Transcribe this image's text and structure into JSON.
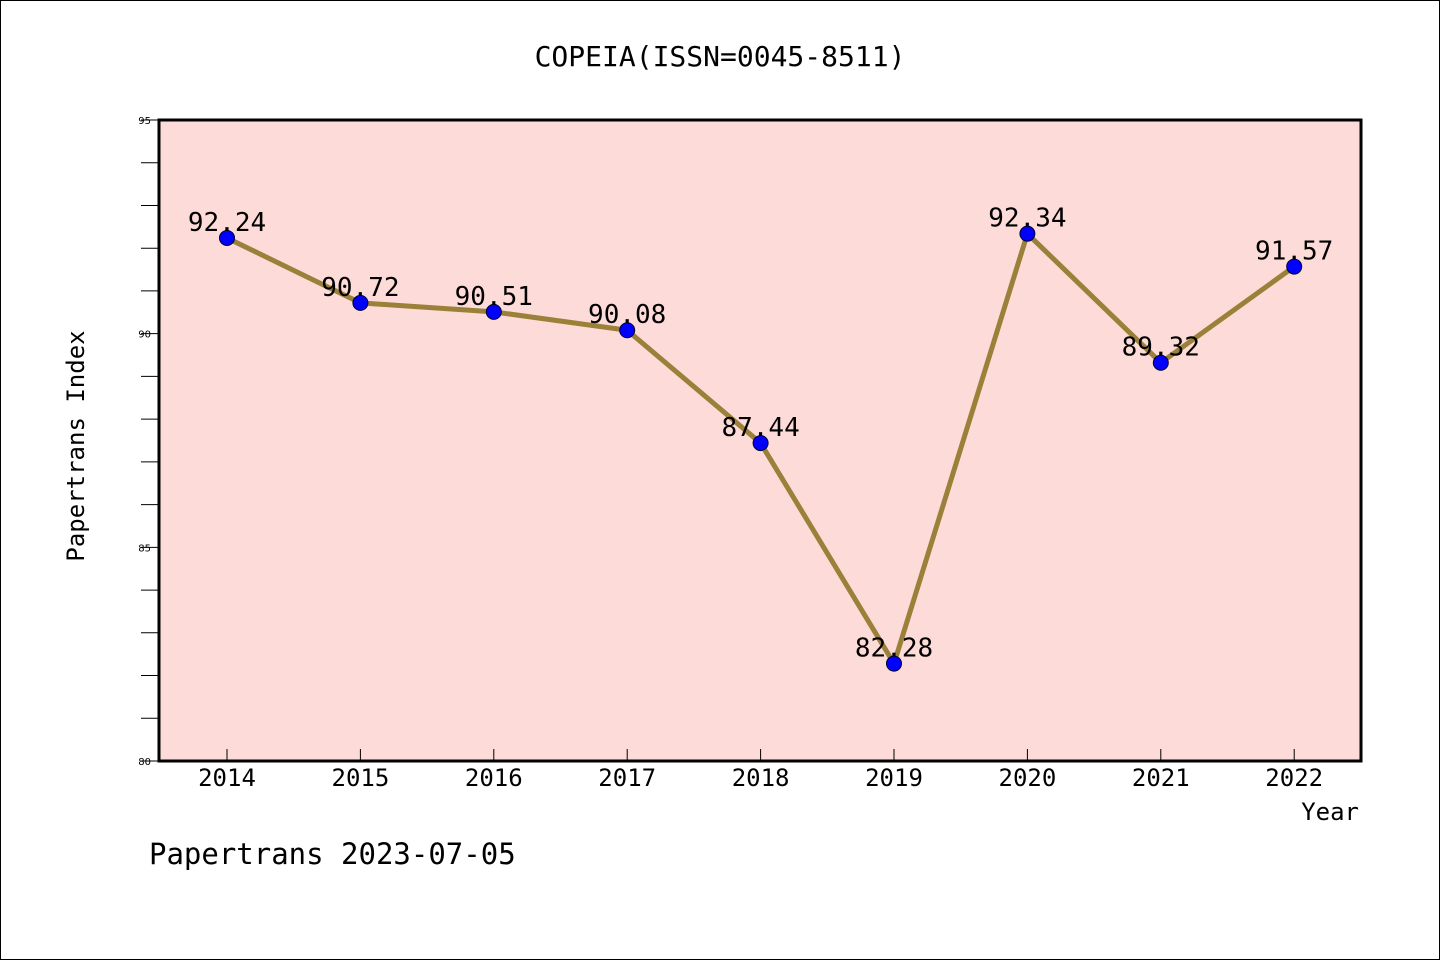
{
  "chart_data": {
    "type": "line",
    "title": "COPEIA(ISSN=0045-8511)",
    "xlabel": "Year",
    "ylabel": "Papertrans Index",
    "footer": "Papertrans 2023-07-05",
    "categories": [
      "2014",
      "2015",
      "2016",
      "2017",
      "2018",
      "2019",
      "2020",
      "2021",
      "2022"
    ],
    "series": [
      {
        "values": [
          92.24,
          90.72,
          90.51,
          90.08,
          87.44,
          82.28,
          92.34,
          89.32,
          91.57
        ],
        "labels": [
          "92.24",
          "90.72",
          "90.51",
          "90.08",
          "87.44",
          "82.28",
          "92.34",
          "89.32",
          "91.57"
        ]
      }
    ],
    "ylim": [
      80,
      95
    ],
    "yticks": [
      "80",
      "85",
      "90",
      "95"
    ],
    "grid": false,
    "colors": {
      "plot_background": "#fddbd8",
      "line": "#9a8038",
      "marker": "#0000ff",
      "axis": "#000000"
    }
  }
}
